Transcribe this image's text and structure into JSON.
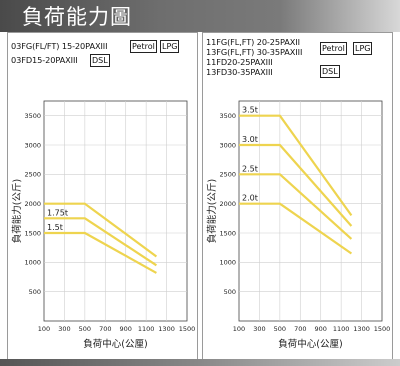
{
  "header": {
    "title": "負荷能力圖"
  },
  "panels": [
    {
      "models": [
        "03FG(FL/FT) 15-20PAXIII",
        "03FD15-20PAXIII"
      ],
      "fuel_tags": [
        {
          "label": "Petrol"
        },
        {
          "label": "LPG"
        },
        {
          "label": "DSL"
        }
      ]
    },
    {
      "models": [
        "11FG(FL,FT) 20-25PAXII",
        "13FG(FL,FT) 30-35PAXIII",
        "11FD20-25PAXIII",
        "13FD30-35PAXIII"
      ],
      "fuel_tags": [
        {
          "label": "Petrol"
        },
        {
          "label": "LPG"
        },
        {
          "label": "DSL"
        }
      ]
    }
  ],
  "chart_data": [
    {
      "type": "line",
      "xlabel": "負荷中心(公厘)",
      "ylabel": "負荷能力(公斤)",
      "xlim": [
        100,
        1500
      ],
      "ylim": [
        0,
        3750
      ],
      "xticks": [
        100,
        300,
        500,
        700,
        900,
        1100,
        1300,
        1500
      ],
      "yticks": [
        500,
        1000,
        1500,
        2000,
        2500,
        3000,
        3500
      ],
      "grid": true,
      "line_color": "#eed44f",
      "series": [
        {
          "name": "",
          "x": [
            100,
            500,
            1200
          ],
          "y": [
            2000,
            2000,
            1100
          ]
        },
        {
          "name": "1.75t",
          "x": [
            100,
            500,
            1200
          ],
          "y": [
            1750,
            1750,
            950
          ]
        },
        {
          "name": "1.5t",
          "x": [
            100,
            500,
            1200
          ],
          "y": [
            1500,
            1500,
            820
          ]
        }
      ]
    },
    {
      "type": "line",
      "xlabel": "負荷中心(公厘)",
      "ylabel": "負荷能力(公斤)",
      "xlim": [
        100,
        1500
      ],
      "ylim": [
        0,
        3750
      ],
      "xticks": [
        100,
        300,
        500,
        700,
        900,
        1100,
        1300,
        1500
      ],
      "yticks": [
        500,
        1000,
        1500,
        2000,
        2500,
        3000,
        3500
      ],
      "grid": true,
      "line_color": "#eed44f",
      "series": [
        {
          "name": "3.5t",
          "x": [
            100,
            500,
            1200
          ],
          "y": [
            3500,
            3500,
            1800
          ]
        },
        {
          "name": "3.0t",
          "x": [
            100,
            500,
            1200
          ],
          "y": [
            3000,
            3000,
            1620
          ]
        },
        {
          "name": "2.5t",
          "x": [
            100,
            500,
            1200
          ],
          "y": [
            2500,
            2500,
            1400
          ]
        },
        {
          "name": "2.0t",
          "x": [
            100,
            500,
            1200
          ],
          "y": [
            2000,
            2000,
            1150
          ]
        }
      ]
    }
  ]
}
